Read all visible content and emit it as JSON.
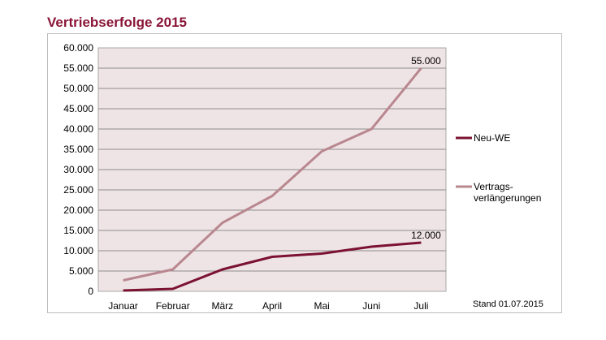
{
  "chart_data": {
    "type": "line",
    "title": "Vertriebserfolge 2015",
    "xlabel": "",
    "ylabel": "",
    "categories": [
      "Januar",
      "Februar",
      "März",
      "April",
      "Mai",
      "Juni",
      "Juli"
    ],
    "ylim": [
      0,
      60000
    ],
    "yticks": [
      0,
      5000,
      10000,
      15000,
      20000,
      25000,
      30000,
      35000,
      40000,
      45000,
      50000,
      55000,
      60000
    ],
    "ytick_labels": [
      "0",
      "5.000",
      "10.000",
      "15.000",
      "20.000",
      "25.000",
      "30.000",
      "35.000",
      "40.000",
      "45.000",
      "50.000",
      "55.000",
      "60.000"
    ],
    "grid": true,
    "legend_position": "right",
    "series": [
      {
        "name": "Neu-WE",
        "color": "#7b1232",
        "values": [
          200,
          600,
          5400,
          8500,
          9300,
          11000,
          12000
        ],
        "end_label": "12.000"
      },
      {
        "name": "Vertrags-\nverlängerungen",
        "legend_lines": [
          "Vertrags-",
          "verlängerungen"
        ],
        "color": "#b98790",
        "values": [
          2700,
          5400,
          16900,
          23500,
          34500,
          40000,
          55000
        ],
        "end_label": "55.000"
      }
    ],
    "plot_background": "#efe4e5",
    "footnote": "Stand 01.07.2015"
  }
}
